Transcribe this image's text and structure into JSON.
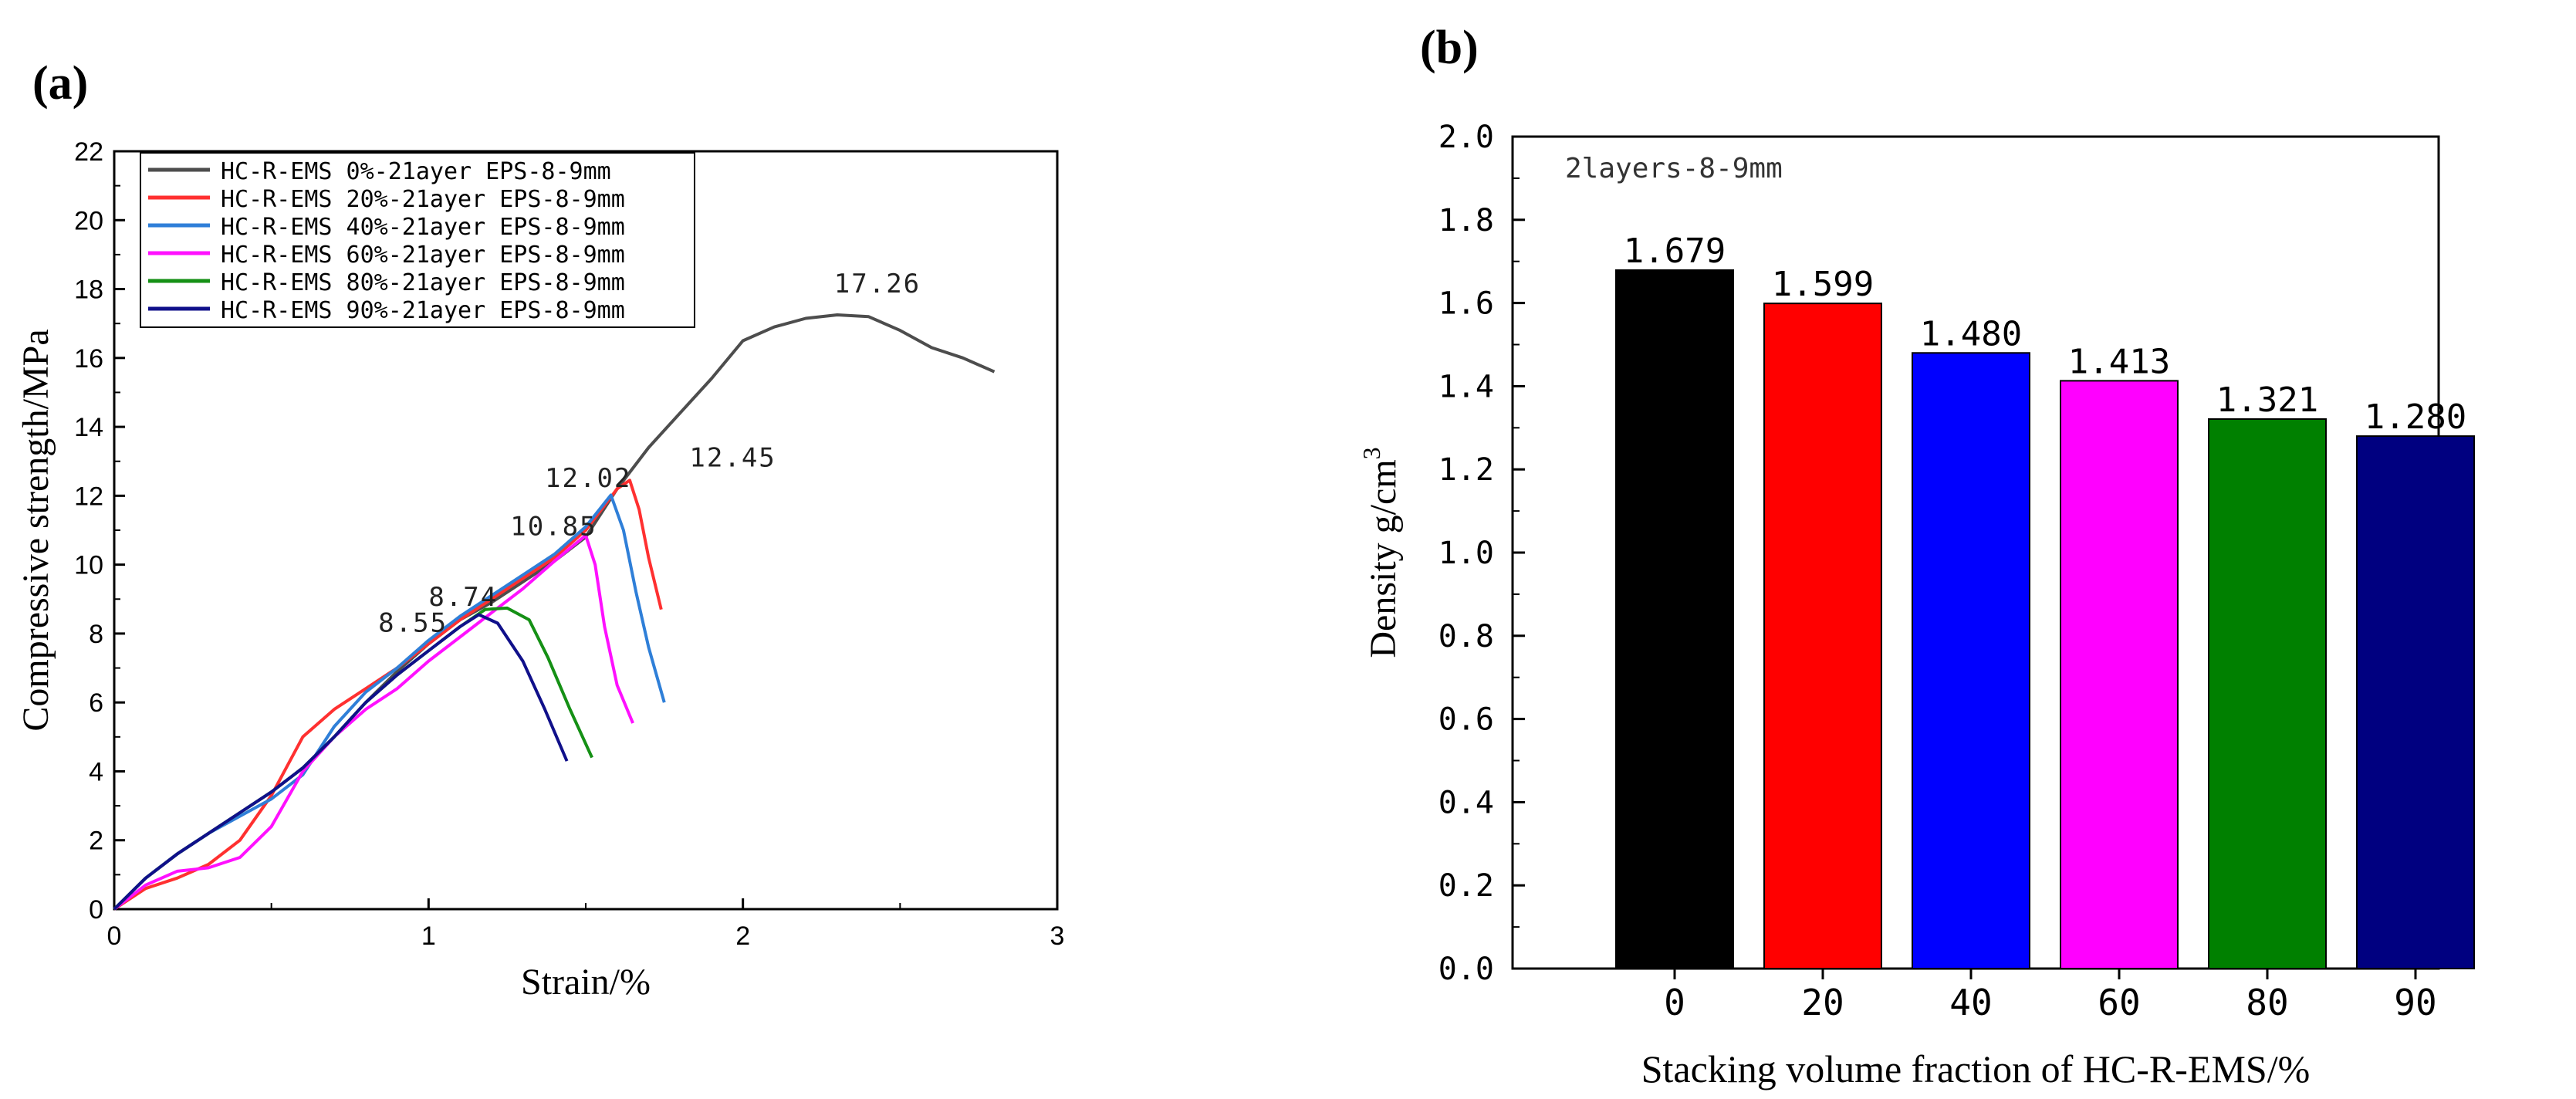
{
  "panel_a": {
    "label": "(a)",
    "chart_data": {
      "type": "line",
      "xlabel": "Strain/%",
      "ylabel": "Compressive strength/MPa",
      "xlim": [
        0,
        3
      ],
      "ylim": [
        0,
        22
      ],
      "xticks": [
        0,
        1,
        2,
        3
      ],
      "yticks": [
        0,
        2,
        4,
        6,
        8,
        10,
        12,
        14,
        16,
        18,
        20,
        22
      ],
      "legend_position": "top-left",
      "series": [
        {
          "name": "HC-R-EMS  0%-21ayer EPS-8-9mm",
          "color": "#4d4d4d",
          "points": [
            [
              0,
              0
            ],
            [
              0.1,
              0.9
            ],
            [
              0.2,
              1.6
            ],
            [
              0.3,
              2.2
            ],
            [
              0.4,
              2.8
            ],
            [
              0.5,
              3.4
            ],
            [
              0.6,
              4.1
            ],
            [
              0.7,
              5.0
            ],
            [
              0.8,
              6.0
            ],
            [
              0.9,
              6.9
            ],
            [
              1.0,
              7.7
            ],
            [
              1.1,
              8.4
            ],
            [
              1.2,
              8.9
            ],
            [
              1.3,
              9.5
            ],
            [
              1.4,
              10.1
            ],
            [
              1.5,
              10.8
            ],
            [
              1.6,
              12.2
            ],
            [
              1.7,
              13.4
            ],
            [
              1.8,
              14.4
            ],
            [
              1.9,
              15.4
            ],
            [
              2.0,
              16.5
            ],
            [
              2.1,
              16.9
            ],
            [
              2.2,
              17.15
            ],
            [
              2.3,
              17.25
            ],
            [
              2.4,
              17.2
            ],
            [
              2.5,
              16.8
            ],
            [
              2.6,
              16.3
            ],
            [
              2.7,
              16.0
            ],
            [
              2.8,
              15.6
            ]
          ]
        },
        {
          "name": "HC-R-EMS 20%-21ayer EPS-8-9mm",
          "color": "#ff3030",
          "points": [
            [
              0,
              0
            ],
            [
              0.1,
              0.6
            ],
            [
              0.2,
              0.9
            ],
            [
              0.3,
              1.3
            ],
            [
              0.4,
              2.0
            ],
            [
              0.5,
              3.3
            ],
            [
              0.6,
              5.0
            ],
            [
              0.7,
              5.8
            ],
            [
              0.8,
              6.4
            ],
            [
              0.9,
              7.0
            ],
            [
              1.0,
              7.7
            ],
            [
              1.1,
              8.4
            ],
            [
              1.2,
              9.0
            ],
            [
              1.3,
              9.6
            ],
            [
              1.4,
              10.2
            ],
            [
              1.5,
              11.0
            ],
            [
              1.6,
              12.2
            ],
            [
              1.64,
              12.45
            ],
            [
              1.67,
              11.6
            ],
            [
              1.7,
              10.2
            ],
            [
              1.74,
              8.7
            ]
          ]
        },
        {
          "name": "HC-R-EMS 40%-21ayer EPS-8-9mm",
          "color": "#2f7fd8",
          "points": [
            [
              0,
              0
            ],
            [
              0.1,
              0.9
            ],
            [
              0.2,
              1.6
            ],
            [
              0.3,
              2.2
            ],
            [
              0.4,
              2.7
            ],
            [
              0.5,
              3.2
            ],
            [
              0.6,
              3.9
            ],
            [
              0.7,
              5.3
            ],
            [
              0.8,
              6.3
            ],
            [
              0.9,
              7.0
            ],
            [
              1.0,
              7.8
            ],
            [
              1.1,
              8.5
            ],
            [
              1.2,
              9.1
            ],
            [
              1.3,
              9.7
            ],
            [
              1.4,
              10.3
            ],
            [
              1.5,
              11.1
            ],
            [
              1.58,
              12.02
            ],
            [
              1.62,
              11.0
            ],
            [
              1.66,
              9.2
            ],
            [
              1.7,
              7.6
            ],
            [
              1.75,
              6.0
            ]
          ]
        },
        {
          "name": "HC-R-EMS 60%-21ayer EPS-8-9mm",
          "color": "#ff10ff",
          "points": [
            [
              0,
              0
            ],
            [
              0.1,
              0.7
            ],
            [
              0.2,
              1.1
            ],
            [
              0.3,
              1.2
            ],
            [
              0.4,
              1.5
            ],
            [
              0.5,
              2.4
            ],
            [
              0.6,
              4.0
            ],
            [
              0.7,
              5.0
            ],
            [
              0.8,
              5.8
            ],
            [
              0.9,
              6.4
            ],
            [
              1.0,
              7.2
            ],
            [
              1.1,
              7.9
            ],
            [
              1.2,
              8.6
            ],
            [
              1.3,
              9.3
            ],
            [
              1.4,
              10.1
            ],
            [
              1.5,
              10.85
            ],
            [
              1.53,
              10.0
            ],
            [
              1.56,
              8.2
            ],
            [
              1.6,
              6.5
            ],
            [
              1.65,
              5.4
            ]
          ]
        },
        {
          "name": "HC-R-EMS 80%-21ayer EPS-8-9mm",
          "color": "#159015",
          "points": [
            [
              0,
              0
            ],
            [
              0.1,
              0.9
            ],
            [
              0.2,
              1.6
            ],
            [
              0.3,
              2.2
            ],
            [
              0.4,
              2.8
            ],
            [
              0.5,
              3.4
            ],
            [
              0.6,
              4.1
            ],
            [
              0.7,
              5.0
            ],
            [
              0.8,
              6.0
            ],
            [
              0.9,
              6.8
            ],
            [
              1.0,
              7.5
            ],
            [
              1.1,
              8.2
            ],
            [
              1.18,
              8.7
            ],
            [
              1.25,
              8.74
            ],
            [
              1.32,
              8.4
            ],
            [
              1.38,
              7.3
            ],
            [
              1.45,
              5.8
            ],
            [
              1.52,
              4.4
            ]
          ]
        },
        {
          "name": "HC-R-EMS 90%-21ayer EPS-8-9mm",
          "color": "#10108a",
          "points": [
            [
              0,
              0
            ],
            [
              0.1,
              0.9
            ],
            [
              0.2,
              1.6
            ],
            [
              0.3,
              2.2
            ],
            [
              0.4,
              2.8
            ],
            [
              0.5,
              3.4
            ],
            [
              0.6,
              4.1
            ],
            [
              0.7,
              5.0
            ],
            [
              0.8,
              6.0
            ],
            [
              0.9,
              6.8
            ],
            [
              1.0,
              7.5
            ],
            [
              1.1,
              8.2
            ],
            [
              1.16,
              8.55
            ],
            [
              1.22,
              8.3
            ],
            [
              1.3,
              7.2
            ],
            [
              1.37,
              5.8
            ],
            [
              1.44,
              4.3
            ]
          ]
        }
      ],
      "annotations": [
        {
          "text": "17.26",
          "x": 2.29,
          "y": 17.9
        },
        {
          "text": "12.45",
          "x": 1.83,
          "y": 12.85
        },
        {
          "text": "12.02",
          "x": 1.37,
          "y": 12.25
        },
        {
          "text": "10.85",
          "x": 1.26,
          "y": 10.85
        },
        {
          "text": "8.74",
          "x": 1.0,
          "y": 8.8
        },
        {
          "text": "8.55",
          "x": 0.84,
          "y": 8.05
        }
      ]
    }
  },
  "panel_b": {
    "label": "(b)",
    "chart_data": {
      "type": "bar",
      "categories": [
        "0",
        "20",
        "40",
        "60",
        "80",
        "90"
      ],
      "values": [
        1.679,
        1.599,
        1.48,
        1.413,
        1.321,
        1.28
      ],
      "value_labels": [
        "1.679",
        "1.599",
        "1.480",
        "1.413",
        "1.321",
        "1.280"
      ],
      "colors": [
        "#000000",
        "#ff0000",
        "#0000ff",
        "#ff00ff",
        "#008000",
        "#000080"
      ],
      "title_inside": "2layers-8-9mm",
      "xlabel": "Stacking volume fraction of HC-R-EMS/%",
      "ylabel_main": "Density g/cm",
      "ylabel_sup": "3",
      "ylim": [
        0,
        2.0
      ],
      "yticks": [
        "0.0",
        "0.2",
        "0.4",
        "0.6",
        "0.8",
        "1.0",
        "1.2",
        "1.4",
        "1.6",
        "1.8",
        "2.0"
      ]
    }
  }
}
